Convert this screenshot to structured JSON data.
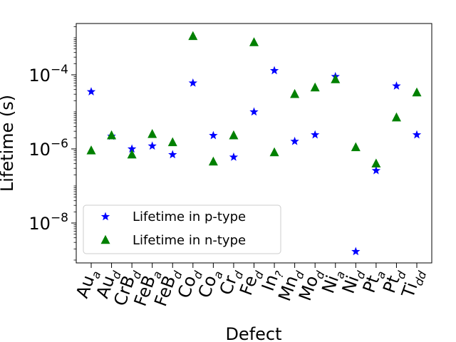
{
  "chart_data": {
    "type": "scatter",
    "xlabel": "Defect",
    "ylabel": "Lifetime (s)",
    "yscale": "log",
    "ylim": [
      1e-09,
      0.003
    ],
    "y_ticks": [
      {
        "value": 0.0001,
        "base": "10",
        "exp": "−4"
      },
      {
        "value": 1e-06,
        "base": "10",
        "exp": "−6"
      },
      {
        "value": 1e-08,
        "base": "10",
        "exp": "−8"
      }
    ],
    "categories": [
      {
        "base": "Au",
        "sub": "a"
      },
      {
        "base": "Au",
        "sub": "d"
      },
      {
        "base": "CrB",
        "sub": "d"
      },
      {
        "base": "FeB",
        "sub": "a"
      },
      {
        "base": "FeB",
        "sub": "d"
      },
      {
        "base": "Co",
        "sub": "d"
      },
      {
        "base": "Co",
        "sub": "a"
      },
      {
        "base": "Cr",
        "sub": "d"
      },
      {
        "base": "Fe",
        "sub": "d"
      },
      {
        "base": "In",
        "sub": "?"
      },
      {
        "base": "Mn",
        "sub": "d"
      },
      {
        "base": "Mo",
        "sub": "d"
      },
      {
        "base": "Ni",
        "sub": "a"
      },
      {
        "base": "Ni",
        "sub": "d"
      },
      {
        "base": "Pt",
        "sub": "a"
      },
      {
        "base": "Pt",
        "sub": "d"
      },
      {
        "base": "Ti",
        "sub": "dd"
      }
    ],
    "grid": false,
    "legend_position": "lower-left",
    "series": [
      {
        "name": "Lifetime in p-type",
        "marker": "star",
        "color": "#0000ff",
        "values": [
          3.5e-05,
          2.2e-06,
          1e-06,
          1.2e-06,
          7e-07,
          6e-05,
          2.3e-06,
          6e-07,
          1e-05,
          0.00013,
          1.6e-06,
          2.4e-06,
          9e-05,
          1.7e-09,
          2.6e-07,
          5e-05,
          2.4e-06
        ]
      },
      {
        "name": "Lifetime in n-type",
        "marker": "triangle",
        "color": "#008000",
        "values": [
          9e-07,
          2.3e-06,
          7e-07,
          2.5e-06,
          1.5e-06,
          0.0011,
          4.5e-07,
          2.3e-06,
          0.00075,
          8e-07,
          3e-05,
          4.5e-05,
          7.5e-05,
          1.1e-06,
          4e-07,
          7e-06,
          3.3e-05
        ]
      }
    ]
  }
}
